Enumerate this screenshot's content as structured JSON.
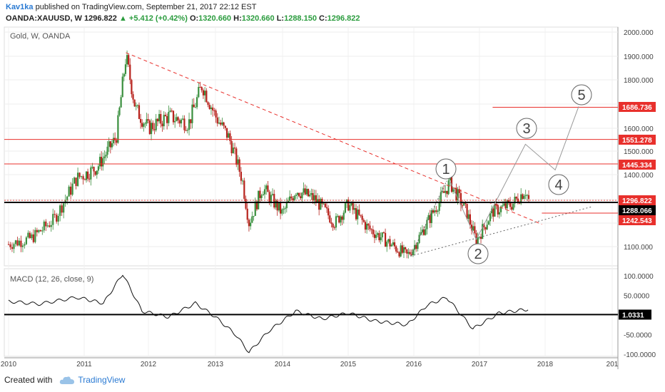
{
  "header": {
    "author": "Kav1ka",
    "published_text": "published on TradingView.com, September 21, 2017 22:12 EST",
    "symbol": "OANDA:XAUUSD, W",
    "last": "1296.822",
    "change": "+5.412 (+0.42%)",
    "o_label": "O:",
    "o_value": "1320.660",
    "h_label": "H:",
    "h_value": "1320.660",
    "l_label": "L:",
    "l_value": "1288.150",
    "c_label": "C:",
    "c_value": "1296.822"
  },
  "main_pane": {
    "title": "Gold, W, OANDA",
    "y_ticks": [
      "2000.000",
      "1900.000",
      "1800.000",
      "1700.000",
      "1600.000",
      "1500.000",
      "1400.000",
      "1100.000"
    ],
    "price_tags": [
      {
        "value": "1686.736",
        "color": "#e8302c"
      },
      {
        "value": "1551.278",
        "color": "#e8302c"
      },
      {
        "value": "1445.334",
        "color": "#e8302c"
      },
      {
        "value": "1296.822",
        "color": "#e8302c"
      },
      {
        "value": "1288.066",
        "color": "#000000"
      },
      {
        "value": "1242.543",
        "color": "#e8302c"
      }
    ],
    "wave_labels": [
      "1",
      "2",
      "3",
      "4",
      "5"
    ]
  },
  "macd_pane": {
    "title": "MACD (12, 26, close, 9)",
    "y_ticks": [
      "100.0000",
      "50.0000",
      "-50.0000",
      "-100.0000"
    ],
    "value_tag": "1.0331"
  },
  "x_axis": {
    "labels": [
      "2010",
      "2011",
      "2012",
      "2013",
      "2014",
      "2015",
      "2016",
      "2017",
      "2018",
      "201"
    ]
  },
  "colors": {
    "up": "#3a8f3e",
    "down": "#b7221c",
    "resistance": "#e8302c",
    "support": "#000000",
    "accent": "#2a7ad3"
  },
  "chart_data": {
    "type": "candlestick",
    "title": "Gold, W, OANDA",
    "xlabel": "",
    "ylabel": "",
    "ylim": [
      1040,
      2020
    ],
    "x_range": [
      "2010",
      "2019"
    ],
    "series": [
      {
        "x": "2010.0",
        "close": 1110
      },
      {
        "x": "2010.3",
        "close": 1135
      },
      {
        "x": "2010.6",
        "close": 1215
      },
      {
        "x": "2010.9",
        "close": 1385
      },
      {
        "x": "2011.2",
        "close": 1430
      },
      {
        "x": "2011.5",
        "close": 1560
      },
      {
        "x": "2011.65",
        "close": 1900
      },
      {
        "x": "2011.8",
        "close": 1680
      },
      {
        "x": "2012.0",
        "close": 1600
      },
      {
        "x": "2012.3",
        "close": 1650
      },
      {
        "x": "2012.6",
        "close": 1620
      },
      {
        "x": "2012.8",
        "close": 1780
      },
      {
        "x": "2013.0",
        "close": 1650
      },
      {
        "x": "2013.2",
        "close": 1560
      },
      {
        "x": "2013.4",
        "close": 1380
      },
      {
        "x": "2013.5",
        "close": 1200
      },
      {
        "x": "2013.7",
        "close": 1350
      },
      {
        "x": "2014.0",
        "close": 1240
      },
      {
        "x": "2014.2",
        "close": 1340
      },
      {
        "x": "2014.5",
        "close": 1300
      },
      {
        "x": "2014.8",
        "close": 1200
      },
      {
        "x": "2015.0",
        "close": 1280
      },
      {
        "x": "2015.3",
        "close": 1180
      },
      {
        "x": "2015.6",
        "close": 1120
      },
      {
        "x": "2015.9",
        "close": 1060
      },
      {
        "x": "2016.0",
        "close": 1100
      },
      {
        "x": "2016.3",
        "close": 1250
      },
      {
        "x": "2016.55",
        "close": 1370
      },
      {
        "x": "2016.8",
        "close": 1250
      },
      {
        "x": "2016.95",
        "close": 1125
      },
      {
        "x": "2017.2",
        "close": 1250
      },
      {
        "x": "2017.5",
        "close": 1280
      },
      {
        "x": "2017.7",
        "close": 1340
      },
      {
        "x": "2017.75",
        "close": 1297
      }
    ],
    "levels": [
      {
        "value": 1686.736,
        "color": "#e8302c"
      },
      {
        "value": 1551.278,
        "color": "#e8302c"
      },
      {
        "value": 1445.334,
        "color": "#e8302c"
      },
      {
        "value": 1288.066,
        "color": "#000000"
      },
      {
        "value": 1242.543,
        "color": "#e8302c"
      }
    ],
    "macd": {
      "ylim": [
        -110,
        110
      ],
      "signal_level": 1.0331,
      "values": [
        {
          "x": "2010.0",
          "v": 35
        },
        {
          "x": "2010.4",
          "v": 28
        },
        {
          "x": "2010.9",
          "v": 45
        },
        {
          "x": "2011.3",
          "v": 30
        },
        {
          "x": "2011.6",
          "v": 105
        },
        {
          "x": "2011.9",
          "v": 10
        },
        {
          "x": "2012.3",
          "v": -5
        },
        {
          "x": "2012.7",
          "v": 30
        },
        {
          "x": "2013.0",
          "v": -5
        },
        {
          "x": "2013.3",
          "v": -50
        },
        {
          "x": "2013.5",
          "v": -95
        },
        {
          "x": "2013.8",
          "v": -40
        },
        {
          "x": "2014.2",
          "v": 10
        },
        {
          "x": "2014.6",
          "v": -10
        },
        {
          "x": "2015.0",
          "v": 5
        },
        {
          "x": "2015.4",
          "v": -15
        },
        {
          "x": "2015.9",
          "v": -25
        },
        {
          "x": "2016.2",
          "v": 25
        },
        {
          "x": "2016.5",
          "v": 45
        },
        {
          "x": "2016.9",
          "v": -35
        },
        {
          "x": "2017.3",
          "v": 5
        },
        {
          "x": "2017.75",
          "v": 15
        }
      ]
    }
  }
}
